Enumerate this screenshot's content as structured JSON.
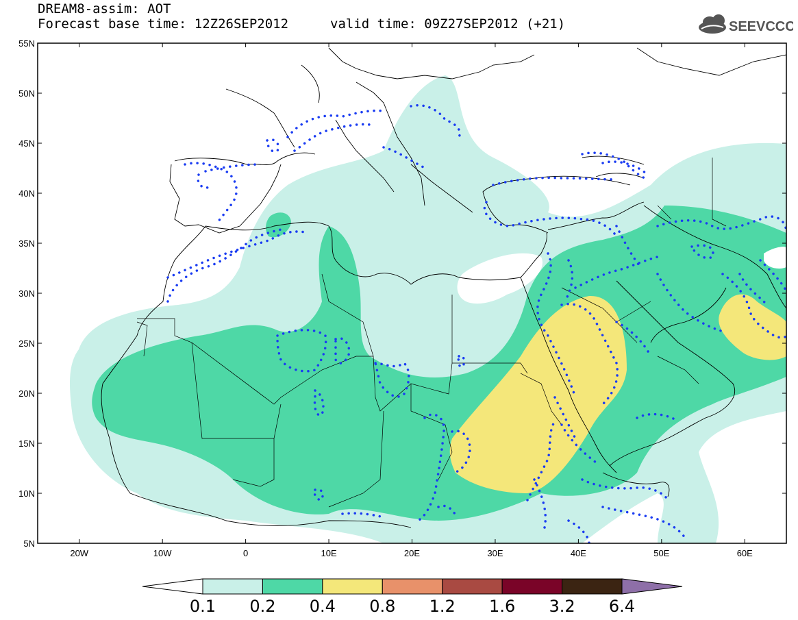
{
  "title": {
    "line1": "DREAM8-assim: AOT",
    "line2": "Forecast base time: 12Z26SEP2012",
    "valid": "valid time: 09Z27SEP2012 (+21)"
  },
  "logo": {
    "text": "SEEVCCC",
    "icon": "cloud-icon"
  },
  "map": {
    "lat_labels": [
      "55N",
      "50N",
      "45N",
      "40N",
      "35N",
      "30N",
      "25N",
      "20N",
      "15N",
      "10N",
      "5N"
    ],
    "lon_labels": [
      "20W",
      "10W",
      "0",
      "10E",
      "20E",
      "30E",
      "40E",
      "50E",
      "60E"
    ],
    "lat_range": [
      5,
      55
    ],
    "lon_range": [
      -25,
      65
    ]
  },
  "colorbar": {
    "levels": [
      "0.1",
      "0.2",
      "0.4",
      "0.8",
      "1.2",
      "1.6",
      "3.2",
      "6.4"
    ],
    "colors": [
      "#ffffff",
      "#c9f0e8",
      "#4ed8a6",
      "#f4e77a",
      "#e8916a",
      "#a94a42",
      "#7a0428",
      "#3b2412",
      "#8e6fa8"
    ]
  },
  "chart_data": {
    "type": "heatmap",
    "title": "DREAM8-assim: AOT",
    "x_ticks": [
      "20W",
      "10W",
      "0",
      "10E",
      "20E",
      "30E",
      "40E",
      "50E",
      "60E"
    ],
    "y_ticks": [
      "55N",
      "50N",
      "45N",
      "40N",
      "35N",
      "30N",
      "25N",
      "20N",
      "15N",
      "10N",
      "5N"
    ],
    "contour_levels": [
      0.1,
      0.2,
      0.4,
      0.8,
      1.2,
      1.6,
      3.2,
      6.4
    ]
  }
}
